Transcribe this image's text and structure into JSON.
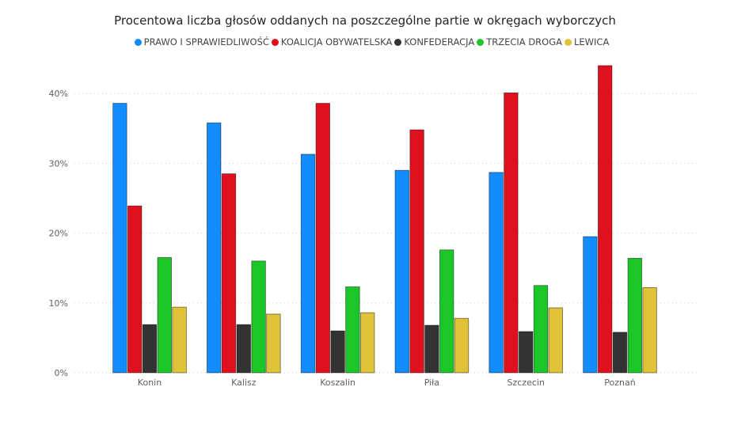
{
  "chart_data": {
    "type": "bar",
    "title": "Procentowa liczba głosów oddanych na poszczególne partie w okręgach wyborczych",
    "categories": [
      "Konin",
      "Kalisz",
      "Koszalin",
      "Piła",
      "Szczecin",
      "Poznań"
    ],
    "series": [
      {
        "name": "PRAWO I SPRAWIEDLIWOŚĆ",
        "color": "#118DFF",
        "values": [
          38.6,
          35.8,
          31.3,
          29.0,
          28.7,
          19.5
        ]
      },
      {
        "name": "KOALICJA OBYWATELSKA",
        "color": "#E0101F",
        "values": [
          23.9,
          28.5,
          38.6,
          34.8,
          40.1,
          44.0
        ]
      },
      {
        "name": "KONFEDERACJA",
        "color": "#333333",
        "values": [
          6.9,
          6.9,
          6.0,
          6.8,
          5.9,
          5.8
        ]
      },
      {
        "name": "TRZECIA DROGA",
        "color": "#1AC628",
        "values": [
          16.5,
          16.0,
          12.3,
          17.6,
          12.5,
          16.4
        ]
      },
      {
        "name": "LEWICA",
        "color": "#E0C239",
        "values": [
          9.4,
          8.4,
          8.6,
          7.8,
          9.3,
          12.2
        ]
      }
    ],
    "y_ticks": [
      "0%",
      "10%",
      "20%",
      "30%",
      "40%"
    ],
    "ylim": [
      0,
      45
    ],
    "xlabel": "",
    "ylabel": "",
    "grid": true,
    "legend_position": "top-center"
  }
}
